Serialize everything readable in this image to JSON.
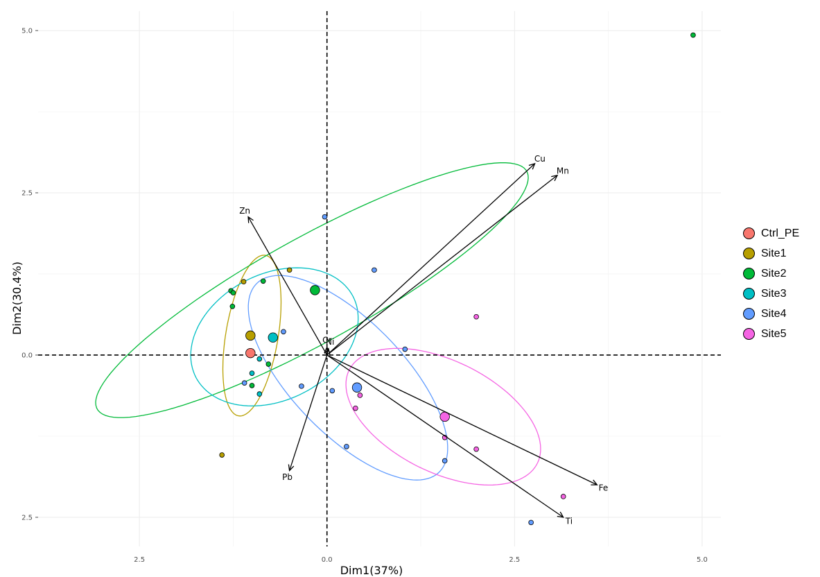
{
  "chart_data": {
    "type": "scatter",
    "title": "",
    "xlabel": "Dim1\u001f(37%)",
    "ylabel": "Dim2\u001f(30.4%)",
    "xlim": [
      -3.85,
      5.25
    ],
    "ylim": [
      -2.95,
      5.3
    ],
    "x_ticks": [
      -2.5,
      0.0,
      2.5,
      5.0
    ],
    "x_tick_labels": [
      "\u001f2.5",
      "0.0",
      "2.5",
      "5.0"
    ],
    "y_ticks": [
      -2.5,
      0.0,
      2.5,
      5.0
    ],
    "y_tick_labels": [
      "\u001f2.5",
      "0.0",
      "2.5",
      "5.0"
    ],
    "grid": true,
    "legend_position": "right",
    "groups": [
      {
        "name": "Ctrl_PE",
        "color": "#F8766D"
      },
      {
        "name": "Site\u001f1",
        "color": "#B79F00"
      },
      {
        "name": "Site\u001f2",
        "color": "#00BA38"
      },
      {
        "name": "Site\u001f3",
        "color": "#00BFC4"
      },
      {
        "name": "Site\u001f4",
        "color": "#619CFF"
      },
      {
        "name": "Site\u001f5",
        "color": "#F564E3"
      }
    ],
    "points": [
      {
        "group": "Site\u001f1",
        "x": -1.11,
        "y": 1.13
      },
      {
        "group": "Site\u001f1",
        "x": -0.5,
        "y": 1.31
      },
      {
        "group": "Site\u001f1",
        "x": -1.4,
        "y": -1.54
      },
      {
        "group": "Site\u001f2",
        "x": -1.28,
        "y": 0.99
      },
      {
        "group": "Site\u001f2",
        "x": -1.25,
        "y": 0.96
      },
      {
        "group": "Site\u001f2",
        "x": -1.26,
        "y": 0.75
      },
      {
        "group": "Site\u001f2",
        "x": -0.85,
        "y": 1.14
      },
      {
        "group": "Site\u001f2",
        "x": -0.78,
        "y": -0.14
      },
      {
        "group": "Site\u001f2",
        "x": -1.0,
        "y": -0.47
      },
      {
        "group": "Site\u001f2",
        "x": 4.88,
        "y": 4.93
      },
      {
        "group": "Site\u001f3",
        "x": -1.0,
        "y": -0.28
      },
      {
        "group": "Site\u001f3",
        "x": -0.9,
        "y": -0.6
      },
      {
        "group": "Site\u001f3",
        "x": -0.9,
        "y": -0.06
      },
      {
        "group": "Site\u001f4",
        "x": -0.58,
        "y": 0.36
      },
      {
        "group": "Site\u001f4",
        "x": -0.03,
        "y": 2.13
      },
      {
        "group": "Site\u001f4",
        "x": -1.1,
        "y": -0.43
      },
      {
        "group": "Site\u001f4",
        "x": -0.34,
        "y": -0.48
      },
      {
        "group": "Site\u001f4",
        "x": 0.63,
        "y": 1.31
      },
      {
        "group": "Site\u001f4",
        "x": 1.04,
        "y": 0.09
      },
      {
        "group": "Site\u001f4",
        "x": 0.07,
        "y": -0.55
      },
      {
        "group": "Site\u001f4",
        "x": 0.26,
        "y": -1.41
      },
      {
        "group": "Site\u001f4",
        "x": 1.57,
        "y": -1.63
      },
      {
        "group": "Site\u001f4",
        "x": 2.72,
        "y": -2.58
      },
      {
        "group": "Site\u001f5",
        "x": 1.99,
        "y": 0.59
      },
      {
        "group": "Site\u001f5",
        "x": 0.44,
        "y": -0.62
      },
      {
        "group": "Site\u001f5",
        "x": 0.38,
        "y": -0.82
      },
      {
        "group": "Site\u001f5",
        "x": 1.57,
        "y": -1.27
      },
      {
        "group": "Site\u001f5",
        "x": 1.99,
        "y": -1.45
      },
      {
        "group": "Site\u001f5",
        "x": 3.15,
        "y": -2.18
      }
    ],
    "centroids": [
      {
        "group": "Ctrl_PE",
        "x": -1.02,
        "y": 0.03
      },
      {
        "group": "Site\u001f1",
        "x": -1.02,
        "y": 0.3
      },
      {
        "group": "Site\u001f2",
        "x": -0.16,
        "y": 1.0
      },
      {
        "group": "Site\u001f3",
        "x": -0.72,
        "y": 0.27
      },
      {
        "group": "Site\u001f4",
        "x": 0.4,
        "y": -0.5
      },
      {
        "group": "Site\u001f5",
        "x": 1.57,
        "y": -0.95
      }
    ],
    "ellipses": [
      {
        "group": "Site\u001f1",
        "cx": -1.0,
        "cy": 0.3,
        "rx": 1.25,
        "ry": 0.35,
        "angle_deg": 82
      },
      {
        "group": "Site\u001f2",
        "cx": -0.2,
        "cy": 1.0,
        "rx": 3.4,
        "ry": 0.78,
        "angle_deg": 33
      },
      {
        "group": "Site\u001f3",
        "cx": -0.7,
        "cy": 0.28,
        "rx": 1.23,
        "ry": 0.93,
        "angle_deg": 40
      },
      {
        "group": "Site\u001f4",
        "cx": 0.28,
        "cy": -0.35,
        "rx": 1.9,
        "ry": 0.8,
        "angle_deg": -52
      },
      {
        "group": "Site\u001f5",
        "cx": 1.55,
        "cy": -0.95,
        "rx": 1.45,
        "ry": 0.83,
        "angle_deg": -33
      }
    ],
    "variables": [
      {
        "name": "Cu",
        "x": 2.77,
        "y": 2.95
      },
      {
        "name": "Mn",
        "x": 3.07,
        "y": 2.77
      },
      {
        "name": "Zn",
        "x": -1.05,
        "y": 2.13
      },
      {
        "name": "Pb",
        "x": -0.5,
        "y": -1.78
      },
      {
        "name": "Fe",
        "x": 3.6,
        "y": -2.0
      },
      {
        "name": "Ti",
        "x": 3.15,
        "y": -2.5
      },
      {
        "name": "Cr",
        "x": 0.0,
        "y": 0.12
      },
      {
        "name": "Ni",
        "x": 0.02,
        "y": 0.1
      }
    ]
  }
}
